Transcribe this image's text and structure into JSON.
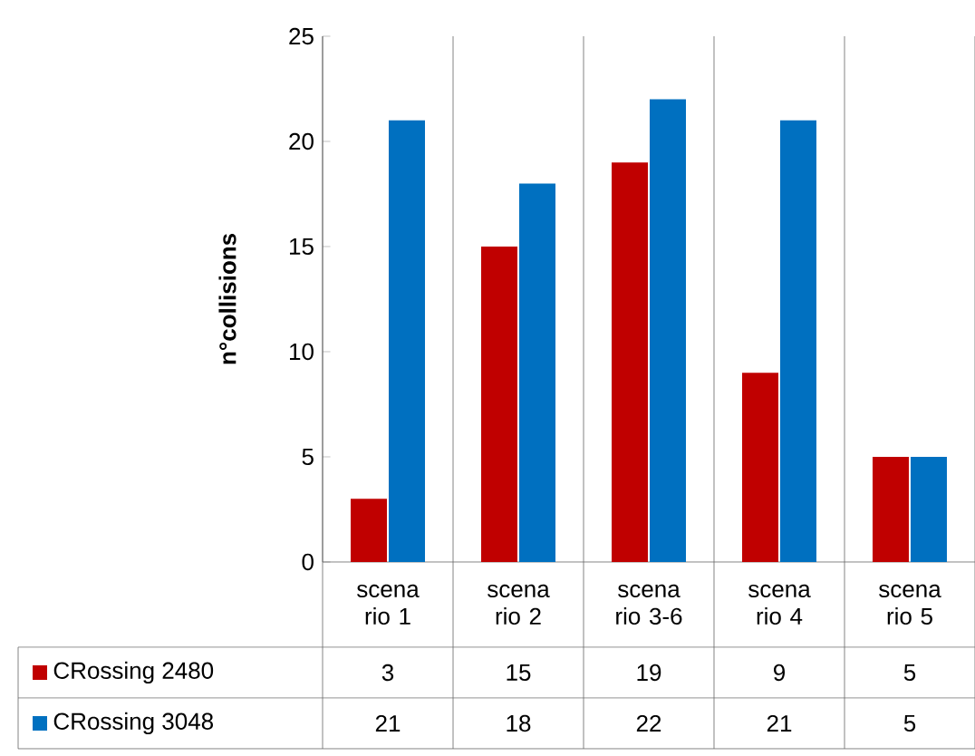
{
  "chart_data": {
    "type": "bar",
    "ylabel": "n°collisions",
    "categories": [
      "scena rio 1",
      "scena rio 2",
      "scena rio 3-6",
      "scena rio 4",
      "scena rio 5"
    ],
    "series": [
      {
        "name": "CRossing 2480",
        "color": "#c00000",
        "values": [
          3,
          15,
          19,
          9,
          5
        ]
      },
      {
        "name": "CRossing 3048",
        "color": "#0070c0",
        "values": [
          21,
          18,
          22,
          21,
          5
        ]
      }
    ],
    "ylim": [
      0,
      25
    ],
    "yticks": [
      0,
      5,
      10,
      15,
      20,
      25
    ],
    "data_labels": true,
    "legend": "bottom left"
  }
}
